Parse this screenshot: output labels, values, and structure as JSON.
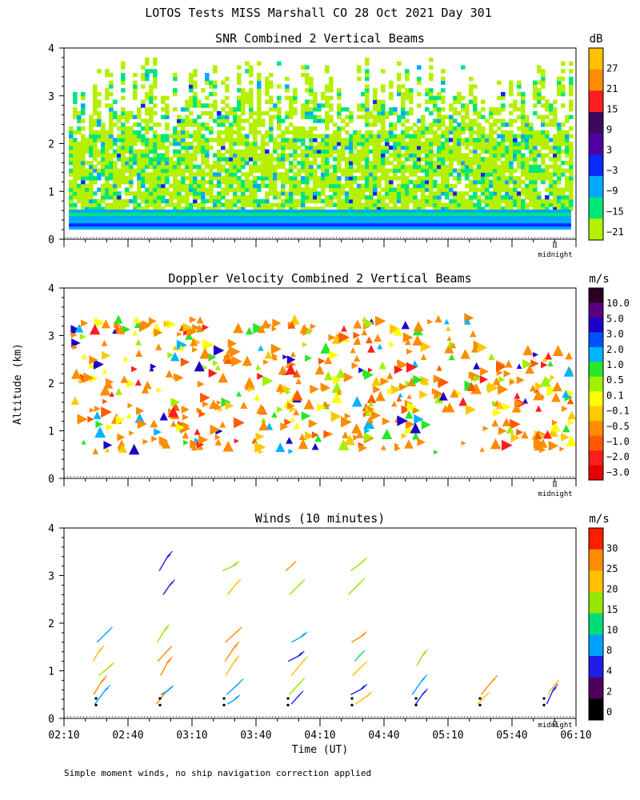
{
  "title": "LOTOS Tests MISS Marshall CO  28 Oct 2021 Day 301",
  "footer": "Simple moment winds, no ship navigation correction applied",
  "chart_data": [
    {
      "type": "heatmap",
      "title": "SNR Combined 2 Vertical Beams",
      "ylabel": "",
      "ylim": [
        0,
        4
      ],
      "yticks": [
        "0",
        "1",
        "2",
        "3",
        "4"
      ],
      "colorbar_unit": "dB",
      "colorbar_labels": [
        "27",
        "21",
        "15",
        "9",
        "3",
        "−3",
        "−9",
        "−15",
        "−21"
      ],
      "colorbar_colors": [
        "#ffc000",
        "#ff8c00",
        "#ff1e1e",
        "#3c0a5a",
        "#5000a0",
        "#0a28ff",
        "#00aaff",
        "#00e678",
        "#b4f000"
      ],
      "midnight_label": "midnight"
    },
    {
      "type": "heatmap",
      "title": "Doppler Velocity Combined 2 Vertical Beams",
      "ylabel": "Altitude (km)",
      "ylim": [
        0,
        4
      ],
      "yticks": [
        "0",
        "1",
        "2",
        "3",
        "4"
      ],
      "colorbar_unit": "m/s",
      "colorbar_labels": [
        "10.0",
        "5.0",
        "3.0",
        "2.0",
        "1.0",
        "0.5",
        "0.1",
        "−0.1",
        "−0.5",
        "−1.0",
        "−2.0",
        "−3.0"
      ],
      "colorbar_colors": [
        "#2d001e",
        "#5a007f",
        "#1e00c8",
        "#0050ff",
        "#00b4ff",
        "#28e628",
        "#a0f000",
        "#ffff00",
        "#ffc800",
        "#ff8c00",
        "#ff5a00",
        "#ff1e1e",
        "#e60000"
      ],
      "midnight_label": "midnight"
    },
    {
      "type": "scatter",
      "title": "Winds (10 minutes)",
      "xlabel": "Time (UT)",
      "ylim": [
        0,
        4
      ],
      "yticks": [
        "0",
        "1",
        "2",
        "3",
        "4"
      ],
      "xticks": [
        "02:10",
        "02:40",
        "03:10",
        "03:40",
        "04:10",
        "04:40",
        "05:10",
        "05:40",
        "06:10"
      ],
      "colorbar_unit": "m/s",
      "colorbar_labels": [
        "30",
        "25",
        "20",
        "15",
        "10",
        "8",
        "4",
        "2",
        "0"
      ],
      "colorbar_colors": [
        "#ff1e00",
        "#ff8c00",
        "#ffc000",
        "#96e600",
        "#00dc78",
        "#00a0ff",
        "#1e1ee6",
        "#50005a",
        "#000000"
      ],
      "midnight_label": "midnight"
    }
  ]
}
